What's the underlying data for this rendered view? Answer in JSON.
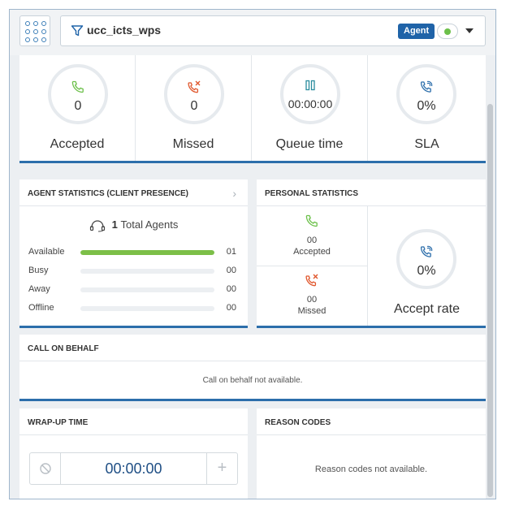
{
  "header": {
    "queue_name": "ucc_icts_wps",
    "agent_badge": "Agent",
    "status_color": "#6cc04a",
    "icons": [
      "apps-grid-icon",
      "filter-icon",
      "status-dot-icon",
      "caret-down-icon"
    ]
  },
  "kpis": [
    {
      "label": "Accepted",
      "value": "0",
      "icon": "phone-accepted-icon",
      "color": "#6cc04a"
    },
    {
      "label": "Missed",
      "value": "0",
      "icon": "phone-missed-icon",
      "color": "#e0572d"
    },
    {
      "label": "Queue time",
      "value": "00:00:00",
      "icon": "pause-icon",
      "color": "#2a8c9e"
    },
    {
      "label": "SLA",
      "value": "0%",
      "icon": "sla-phone-icon",
      "color": "#2c6eab"
    }
  ],
  "agent_statistics": {
    "title": "AGENT STATISTICS (CLIENT PRESENCE)",
    "total_count": "1",
    "total_label": "Total Agents",
    "rows": [
      {
        "label": "Available",
        "value": "01",
        "fraction": 1.0
      },
      {
        "label": "Busy",
        "value": "00",
        "fraction": 0
      },
      {
        "label": "Away",
        "value": "00",
        "fraction": 0
      },
      {
        "label": "Offline",
        "value": "00",
        "fraction": 0
      }
    ]
  },
  "personal_statistics": {
    "title": "PERSONAL STATISTICS",
    "accepted_value": "00",
    "accepted_label": "Accepted",
    "missed_value": "00",
    "missed_label": "Missed",
    "rate_value": "0%",
    "rate_label": "Accept rate"
  },
  "call_on_behalf": {
    "title": "CALL ON BEHALF",
    "message": "Call on behalf not available."
  },
  "wrap_up": {
    "title": "WRAP-UP TIME",
    "time": "00:00:00"
  },
  "reason_codes": {
    "title": "REASON CODES",
    "message": "Reason codes not available."
  }
}
